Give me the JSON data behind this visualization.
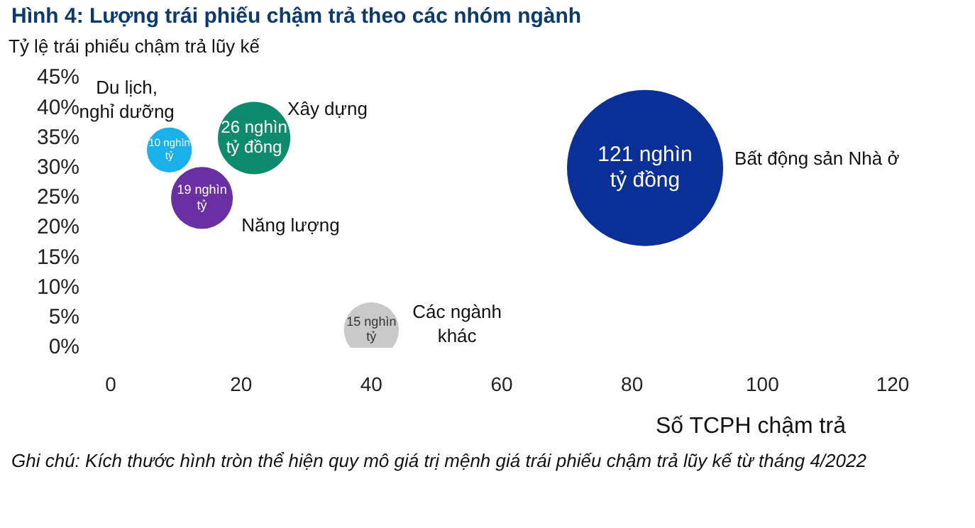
{
  "chart_data": {
    "type": "bubble",
    "title": "Hình 4: Lượng trái phiếu chậm trả theo các nhóm ngành",
    "ylabel": "Tỷ lệ trái phiếu chậm trả lũy kế",
    "xlabel": "Số TCPH chậm trả",
    "xlim": [
      0,
      120
    ],
    "xticks": [
      0,
      20,
      40,
      60,
      80,
      100,
      120
    ],
    "ylim": [
      0,
      45
    ],
    "yticks": [
      {
        "value": 0,
        "label": "0%"
      },
      {
        "value": 5,
        "label": "5%"
      },
      {
        "value": 10,
        "label": "10%"
      },
      {
        "value": 15,
        "label": "15%"
      },
      {
        "value": 20,
        "label": "20%"
      },
      {
        "value": 25,
        "label": "25%"
      },
      {
        "value": 30,
        "label": "30%"
      },
      {
        "value": 35,
        "label": "35%"
      },
      {
        "value": 40,
        "label": "40%"
      },
      {
        "value": 45,
        "label": "45%"
      }
    ],
    "grid": false,
    "series": [
      {
        "name": "Du lịch, nghỉ dưỡng",
        "color": "#1ab0ea",
        "x": [
          9
        ],
        "values": [
          33
        ],
        "sizes": [
          0.083
        ]
      },
      {
        "name": "Xây dựng",
        "color": "#0e8a6c",
        "x": [
          22
        ],
        "values": [
          35
        ],
        "sizes": [
          0.215
        ]
      },
      {
        "name": "Năng lượng",
        "color": "#6a2fa3",
        "x": [
          14
        ],
        "values": [
          25
        ],
        "sizes": [
          0.157
        ]
      },
      {
        "name": "Các ngành khác",
        "color": "#c9c9c9",
        "x": [
          40
        ],
        "values": [
          3
        ],
        "sizes": [
          0.124
        ]
      },
      {
        "name": "Bất động sản Nhà ở",
        "color": "#0a2f96",
        "x": [
          82
        ],
        "values": [
          30
        ],
        "sizes": [
          1
        ]
      }
    ],
    "annotations": [
      {
        "text": "10 nghìn tỷ",
        "x": 9,
        "y": 33
      },
      {
        "text": "26 nghìn tỷ đồng",
        "x": 22,
        "y": 35
      },
      {
        "text": "19 nghìn tỷ",
        "x": 14,
        "y": 25
      },
      {
        "text": "15 nghìn tỷ",
        "x": 40,
        "y": 3
      },
      {
        "text": "121 nghìn tỷ đồng",
        "x": 82,
        "y": 30
      },
      "Ghi chú: Kích thước hình tròn thể hiện quy mô giá trị mệnh giá trái phiếu chậm trả lũy kế từ tháng 4/2022"
    ]
  }
}
